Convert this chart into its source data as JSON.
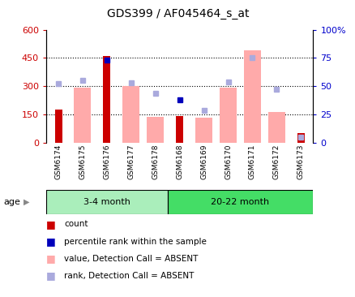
{
  "title": "GDS399 / AF045464_s_at",
  "samples": [
    "GSM6174",
    "GSM6175",
    "GSM6176",
    "GSM6177",
    "GSM6178",
    "GSM6168",
    "GSM6169",
    "GSM6170",
    "GSM6171",
    "GSM6172",
    "GSM6173"
  ],
  "count_values": [
    175,
    0,
    460,
    0,
    0,
    140,
    0,
    0,
    0,
    0,
    50
  ],
  "count_color": "#cc0000",
  "value_absent": [
    0,
    290,
    0,
    300,
    135,
    0,
    132,
    292,
    490,
    163,
    0
  ],
  "value_absent_color": "#ffaaaa",
  "rank_absent": [
    315,
    330,
    0,
    320,
    262,
    0,
    170,
    322,
    450,
    283,
    28
  ],
  "rank_absent_color": "#aaaadd",
  "rank_present_blue": [
    0,
    0,
    440,
    0,
    0,
    228,
    0,
    0,
    0,
    0,
    0
  ],
  "rank_present_color": "#0000bb",
  "ylim_left": [
    0,
    600
  ],
  "ylim_right": [
    0,
    100
  ],
  "yticks_left": [
    0,
    150,
    300,
    450,
    600
  ],
  "yticks_left_labels": [
    "0",
    "150",
    "300",
    "450",
    "600"
  ],
  "yticks_right": [
    0,
    25,
    50,
    75,
    100
  ],
  "yticks_right_labels": [
    "0",
    "25",
    "50",
    "75",
    "100%"
  ],
  "group1_label": "3-4 month",
  "group2_label": "20-22 month",
  "group1_indices": [
    0,
    1,
    2,
    3,
    4
  ],
  "group2_indices": [
    5,
    6,
    7,
    8,
    9,
    10
  ],
  "age_label": "age",
  "legend_items": [
    {
      "label": "count",
      "color": "#cc0000"
    },
    {
      "label": "percentile rank within the sample",
      "color": "#0000bb"
    },
    {
      "label": "value, Detection Call = ABSENT",
      "color": "#ffaaaa"
    },
    {
      "label": "rank, Detection Call = ABSENT",
      "color": "#aaaadd"
    }
  ],
  "bg_color": "#ffffff",
  "plot_bg": "#ffffff",
  "tick_area_bg": "#cccccc",
  "group1_bg": "#aaeebb",
  "group2_bg": "#44dd66",
  "dotted_lines": [
    150,
    300,
    450
  ]
}
